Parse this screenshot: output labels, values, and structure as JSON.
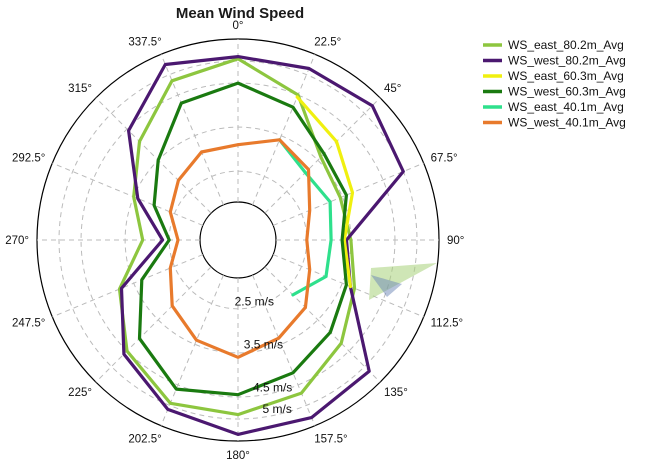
{
  "chart_data": {
    "type": "polar-line",
    "title": "Mean Wind Speed",
    "direction_labels": [
      "0°",
      "22.5°",
      "45°",
      "67.5°",
      "90°",
      "112.5°",
      "135°",
      "157.5°",
      "180°",
      "202.5°",
      "225°",
      "247.5°",
      "270°",
      "292.5°",
      "315°",
      "337.5°"
    ],
    "radial_axis": {
      "unit": "m/s",
      "min": 1.8,
      "max": 5.5,
      "grid_rings": [
        2.5,
        3.5,
        4.5,
        5.0
      ],
      "ring_labels": [
        "2.5 m/s",
        "3.5 m/s",
        "4.5 m/s",
        "5 m/s"
      ]
    },
    "series": [
      {
        "name": "WS_east_80.2m_Avg",
        "color": "#8dc63f",
        "points": [
          [
            0,
            5.05
          ],
          [
            22.5,
            4.5
          ],
          [
            45,
            3.6
          ],
          [
            67.5,
            3.45
          ],
          [
            90,
            3.5
          ],
          [
            112.5,
            3.8
          ],
          [
            135,
            4.25
          ],
          [
            157.5,
            4.7
          ],
          [
            180,
            4.9
          ],
          [
            202.5,
            4.95
          ],
          [
            225,
            4.5
          ],
          [
            247.5,
            3.85
          ],
          [
            270,
            3.1
          ],
          [
            292.5,
            3.5
          ],
          [
            315,
            4.1
          ],
          [
            337.5,
            4.85
          ]
        ]
      },
      {
        "name": "WS_west_80.2m_Avg",
        "color": "#4b1870",
        "points": [
          [
            0,
            5.1
          ],
          [
            22.5,
            5.15
          ],
          [
            45,
            5.25
          ],
          [
            67.5,
            5.0
          ],
          [
            90,
            3.4
          ],
          [
            112.5,
            3.7
          ],
          [
            135,
            5.15
          ],
          [
            157.5,
            5.3
          ],
          [
            180,
            5.35
          ],
          [
            202.5,
            5.1
          ],
          [
            225,
            4.6
          ],
          [
            247.5,
            3.8
          ],
          [
            270,
            2.65
          ],
          [
            292.5,
            3.4
          ],
          [
            315,
            4.45
          ],
          [
            337.5,
            5.25
          ]
        ]
      },
      {
        "name": "WS_east_60.3m_Avg",
        "color": "#f0f00f",
        "points": [
          [
            22.5,
            4.45
          ],
          [
            45,
            4.1
          ],
          [
            67.5,
            3.75
          ],
          [
            90,
            3.35
          ],
          [
            112.5,
            3.7
          ]
        ]
      },
      {
        "name": "WS_west_60.3m_Avg",
        "color": "#1a7a10",
        "points": [
          [
            0,
            4.5
          ],
          [
            22.5,
            4.2
          ],
          [
            45,
            3.7
          ],
          [
            67.5,
            3.6
          ],
          [
            90,
            3.3
          ],
          [
            112.5,
            3.6
          ],
          [
            135,
            3.9
          ],
          [
            157.5,
            4.2
          ],
          [
            180,
            4.45
          ],
          [
            202.5,
            4.6
          ],
          [
            225,
            4.1
          ],
          [
            247.5,
            3.3
          ],
          [
            270,
            2.5
          ],
          [
            292.5,
            3.0
          ],
          [
            315,
            3.5
          ],
          [
            337.5,
            4.3
          ]
        ]
      },
      {
        "name": "WS_east_40.1m_Avg",
        "color": "#2ee08c",
        "points": [
          [
            22.5,
            3.4
          ],
          [
            45,
            3.1
          ],
          [
            67.5,
            3.2
          ],
          [
            90,
            3.05
          ],
          [
            112.5,
            3.1
          ],
          [
            135,
            2.7
          ]
        ]
      },
      {
        "name": "WS_west_40.1m_Avg",
        "color": "#e87a2c",
        "points": [
          [
            0,
            3.1
          ],
          [
            22.5,
            3.4
          ],
          [
            45,
            3.2
          ],
          [
            67.5,
            2.7
          ],
          [
            90,
            2.5
          ],
          [
            112.5,
            2.7
          ],
          [
            135,
            3.1
          ],
          [
            157.5,
            3.35
          ],
          [
            180,
            3.6
          ],
          [
            202.5,
            3.4
          ],
          [
            225,
            3.05
          ],
          [
            247.5,
            2.6
          ],
          [
            270,
            2.3
          ],
          [
            292.5,
            2.6
          ],
          [
            315,
            2.85
          ],
          [
            337.5,
            3.1
          ]
        ]
      }
    ],
    "grid": true,
    "legend_position": "top-right"
  }
}
